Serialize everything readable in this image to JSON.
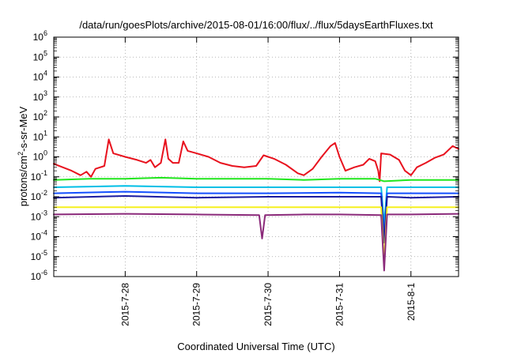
{
  "chart_data": {
    "type": "line",
    "title": "/data/run/goesPlots/archive/2015-08-01/16:00/flux/../flux/5daysEarthFluxes.txt",
    "xlabel": "Coordinated Universal Time (UTC)",
    "ylabel_parts": {
      "base": "protons/cm",
      "sup": "2",
      "rest": "-s-sr-MeV"
    },
    "yscale": "log",
    "ylim": [
      1e-06,
      1000000.0
    ],
    "y_ticks": [
      {
        "value": 1e-06,
        "base": "10",
        "exp": "-6"
      },
      {
        "value": 1e-05,
        "base": "10",
        "exp": "-5"
      },
      {
        "value": 0.0001,
        "base": "10",
        "exp": "-4"
      },
      {
        "value": 0.001,
        "base": "10",
        "exp": "-3"
      },
      {
        "value": 0.01,
        "base": "10",
        "exp": "-2"
      },
      {
        "value": 0.1,
        "base": "10",
        "exp": "-1"
      },
      {
        "value": 1,
        "base": "10",
        "exp": "0"
      },
      {
        "value": 10,
        "base": "10",
        "exp": "1"
      },
      {
        "value": 100,
        "base": "10",
        "exp": "2"
      },
      {
        "value": 1000,
        "base": "10",
        "exp": "3"
      },
      {
        "value": 10000,
        "base": "10",
        "exp": "4"
      },
      {
        "value": 100000,
        "base": "10",
        "exp": "5"
      },
      {
        "value": 1000000,
        "base": "10",
        "exp": "6"
      }
    ],
    "x_range": [
      "2015-07-27T00:00",
      "2015-08-01T16:00"
    ],
    "x_ticks": [
      {
        "value": "2015-07-28T00:00",
        "label": "2015-7-28"
      },
      {
        "value": "2015-07-29T00:00",
        "label": "2015-7-29"
      },
      {
        "value": "2015-07-30T00:00",
        "label": "2015-7-30"
      },
      {
        "value": "2015-07-31T00:00",
        "label": "2015-7-31"
      },
      {
        "value": "2015-08-01T00:00",
        "label": "2015-8-1"
      }
    ],
    "grid": true,
    "series": [
      {
        "color": "#e8121e",
        "points": [
          [
            "2015-07-27T00:00",
            0.45
          ],
          [
            "2015-07-27T03:00",
            0.3
          ],
          [
            "2015-07-27T06:00",
            0.2
          ],
          [
            "2015-07-27T09:00",
            0.12
          ],
          [
            "2015-07-27T11:00",
            0.18
          ],
          [
            "2015-07-27T12:30",
            0.1
          ],
          [
            "2015-07-27T14:00",
            0.25
          ],
          [
            "2015-07-27T17:00",
            0.35
          ],
          [
            "2015-07-27T18:30",
            7.5
          ],
          [
            "2015-07-27T20:00",
            1.5
          ],
          [
            "2015-07-28T00:00",
            1.0
          ],
          [
            "2015-07-28T04:00",
            0.7
          ],
          [
            "2015-07-28T07:00",
            0.5
          ],
          [
            "2015-07-28T08:30",
            0.7
          ],
          [
            "2015-07-28T10:00",
            0.3
          ],
          [
            "2015-07-28T12:00",
            0.5
          ],
          [
            "2015-07-28T13:30",
            7.5
          ],
          [
            "2015-07-28T14:30",
            0.8
          ],
          [
            "2015-07-28T16:00",
            0.5
          ],
          [
            "2015-07-28T18:00",
            0.5
          ],
          [
            "2015-07-28T19:30",
            6.0
          ],
          [
            "2015-07-28T21:00",
            2.0
          ],
          [
            "2015-07-29T00:00",
            1.5
          ],
          [
            "2015-07-29T04:00",
            1.0
          ],
          [
            "2015-07-29T08:00",
            0.5
          ],
          [
            "2015-07-29T12:00",
            0.35
          ],
          [
            "2015-07-29T16:00",
            0.3
          ],
          [
            "2015-07-29T20:00",
            0.35
          ],
          [
            "2015-07-29T22:30",
            1.2
          ],
          [
            "2015-07-30T02:00",
            0.8
          ],
          [
            "2015-07-30T06:00",
            0.4
          ],
          [
            "2015-07-30T10:00",
            0.15
          ],
          [
            "2015-07-30T12:00",
            0.12
          ],
          [
            "2015-07-30T15:00",
            0.25
          ],
          [
            "2015-07-30T18:00",
            1.0
          ],
          [
            "2015-07-30T21:00",
            3.5
          ],
          [
            "2015-07-30T22:30",
            5.0
          ],
          [
            "2015-07-31T00:00",
            1.0
          ],
          [
            "2015-07-31T02:00",
            0.2
          ],
          [
            "2015-07-31T05:00",
            0.3
          ],
          [
            "2015-07-31T08:00",
            0.4
          ],
          [
            "2015-07-31T10:00",
            0.8
          ],
          [
            "2015-07-31T12:00",
            0.6
          ],
          [
            "2015-07-31T13:00",
            0.2
          ],
          [
            "2015-07-31T13:30",
            0.06
          ],
          [
            "2015-07-31T14:00",
            1.5
          ],
          [
            "2015-07-31T17:00",
            1.3
          ],
          [
            "2015-07-31T20:00",
            0.7
          ],
          [
            "2015-07-31T22:00",
            0.2
          ],
          [
            "2015-08-01T00:00",
            0.12
          ],
          [
            "2015-08-01T02:00",
            0.3
          ],
          [
            "2015-08-01T05:00",
            0.5
          ],
          [
            "2015-08-01T08:00",
            0.9
          ],
          [
            "2015-08-01T11:00",
            1.3
          ],
          [
            "2015-08-01T14:00",
            3.5
          ],
          [
            "2015-08-01T16:00",
            2.5
          ]
        ]
      },
      {
        "color": "#22e61e",
        "points": [
          [
            "2015-07-27T00:00",
            0.07
          ],
          [
            "2015-07-27T12:00",
            0.08
          ],
          [
            "2015-07-28T00:00",
            0.08
          ],
          [
            "2015-07-28T12:00",
            0.09
          ],
          [
            "2015-07-29T00:00",
            0.08
          ],
          [
            "2015-07-29T12:00",
            0.08
          ],
          [
            "2015-07-30T00:00",
            0.08
          ],
          [
            "2015-07-30T12:00",
            0.07
          ],
          [
            "2015-07-31T00:00",
            0.08
          ],
          [
            "2015-07-31T12:00",
            0.08
          ],
          [
            "2015-07-31T15:00",
            0.06
          ],
          [
            "2015-08-01T00:00",
            0.07
          ],
          [
            "2015-08-01T16:00",
            0.07
          ]
        ]
      },
      {
        "color": "#00bfe6",
        "points": [
          [
            "2015-07-27T00:00",
            0.03
          ],
          [
            "2015-07-28T00:00",
            0.035
          ],
          [
            "2015-07-29T00:00",
            0.03
          ],
          [
            "2015-07-30T00:00",
            0.03
          ],
          [
            "2015-07-31T00:00",
            0.03
          ],
          [
            "2015-07-31T14:00",
            0.03
          ],
          [
            "2015-07-31T15:00",
            0.0004
          ],
          [
            "2015-07-31T16:00",
            0.03
          ],
          [
            "2015-08-01T00:00",
            0.03
          ],
          [
            "2015-08-01T16:00",
            0.03
          ]
        ]
      },
      {
        "color": "#1450ff",
        "points": [
          [
            "2015-07-27T00:00",
            0.015
          ],
          [
            "2015-07-28T00:00",
            0.018
          ],
          [
            "2015-07-29T00:00",
            0.015
          ],
          [
            "2015-07-30T00:00",
            0.015
          ],
          [
            "2015-07-31T00:00",
            0.016
          ],
          [
            "2015-07-31T14:00",
            0.015
          ],
          [
            "2015-07-31T15:00",
            0.0001
          ],
          [
            "2015-07-31T16:00",
            0.015
          ],
          [
            "2015-08-01T00:00",
            0.015
          ],
          [
            "2015-08-01T16:00",
            0.015
          ]
        ]
      },
      {
        "color": "#1a1aa0",
        "points": [
          [
            "2015-07-27T00:00",
            0.009
          ],
          [
            "2015-07-28T00:00",
            0.011
          ],
          [
            "2015-07-29T00:00",
            0.009
          ],
          [
            "2015-07-30T00:00",
            0.01
          ],
          [
            "2015-07-31T00:00",
            0.01
          ],
          [
            "2015-07-31T14:00",
            0.01
          ],
          [
            "2015-07-31T15:00",
            5e-05
          ],
          [
            "2015-07-31T16:00",
            0.01
          ],
          [
            "2015-08-01T00:00",
            0.009
          ],
          [
            "2015-08-01T16:00",
            0.01
          ]
        ]
      },
      {
        "color": "#f5f01e",
        "points": [
          [
            "2015-07-27T00:00",
            0.003
          ],
          [
            "2015-07-28T00:00",
            0.003
          ],
          [
            "2015-07-29T00:00",
            0.003
          ],
          [
            "2015-07-30T00:00",
            0.003
          ],
          [
            "2015-07-31T00:00",
            0.003
          ],
          [
            "2015-07-31T14:00",
            0.003
          ],
          [
            "2015-07-31T15:00",
            5e-06
          ],
          [
            "2015-07-31T16:00",
            0.003
          ],
          [
            "2015-08-01T00:00",
            0.003
          ],
          [
            "2015-08-01T16:00",
            0.003
          ]
        ]
      },
      {
        "color": "#8b2a7a",
        "points": [
          [
            "2015-07-27T00:00",
            0.0013
          ],
          [
            "2015-07-28T00:00",
            0.0014
          ],
          [
            "2015-07-29T00:00",
            0.0013
          ],
          [
            "2015-07-29T21:00",
            0.0012
          ],
          [
            "2015-07-29T22:00",
            8e-05
          ],
          [
            "2015-07-29T23:00",
            0.0012
          ],
          [
            "2015-07-30T12:00",
            0.0013
          ],
          [
            "2015-07-31T00:00",
            0.0013
          ],
          [
            "2015-07-31T14:00",
            0.0012
          ],
          [
            "2015-07-31T15:00",
            2e-06
          ],
          [
            "2015-07-31T16:00",
            0.0013
          ],
          [
            "2015-08-01T00:00",
            0.0013
          ],
          [
            "2015-08-01T16:00",
            0.0014
          ]
        ]
      }
    ]
  }
}
